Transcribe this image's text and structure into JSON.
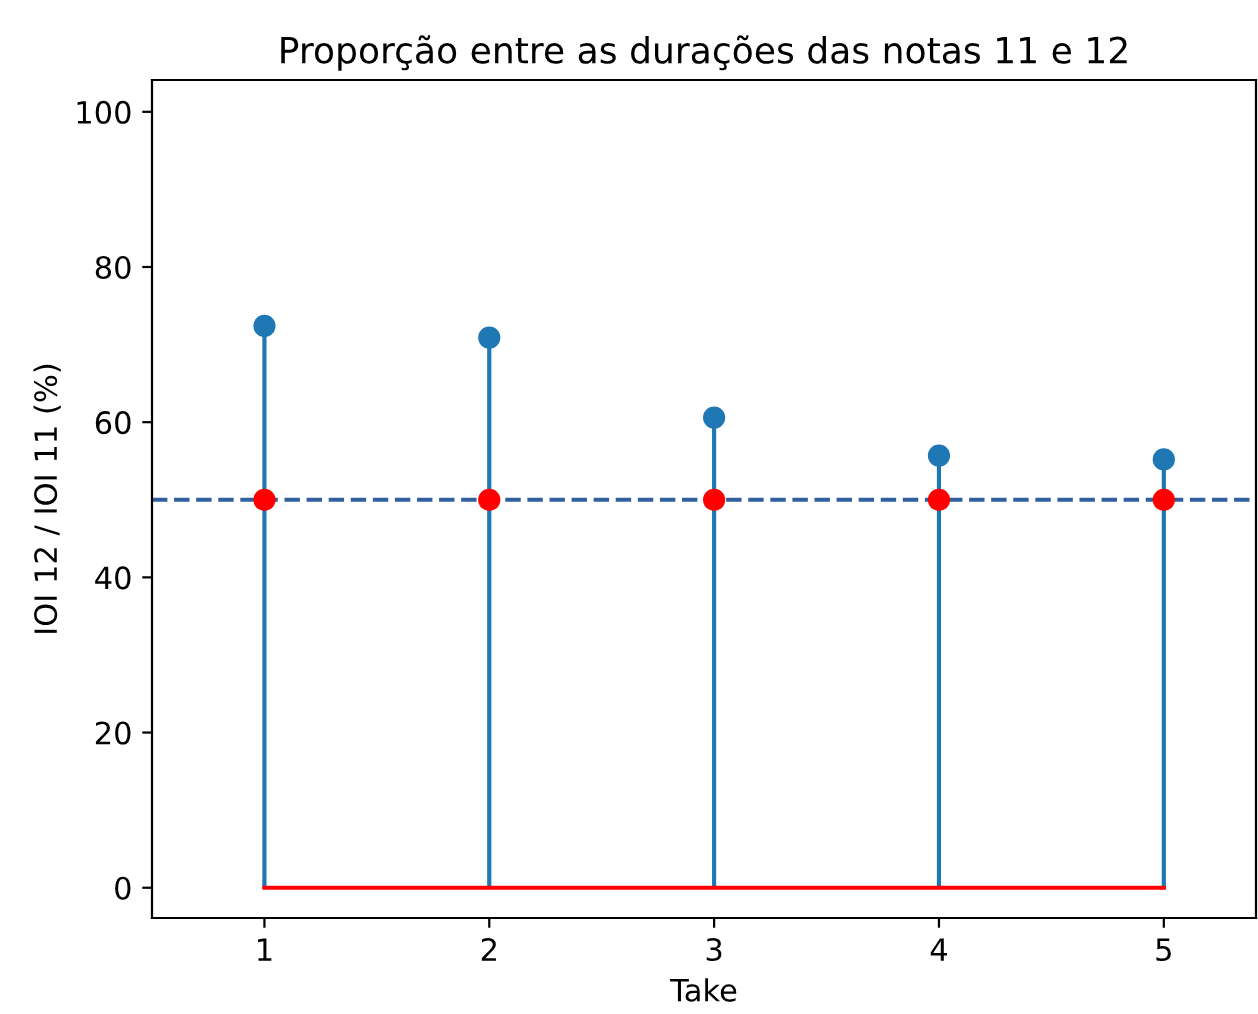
{
  "chart_data": {
    "type": "lollipop",
    "title": "Proporção entre as durações das notas 11 e 12",
    "xlabel": "Take",
    "ylabel": "IOI 12 / IOI 11 (%)",
    "x": [
      1,
      2,
      3,
      4,
      5
    ],
    "series": [
      {
        "color": "#1f77b4",
        "values": [
          72.4,
          70.9,
          60.6,
          55.7,
          55.2
        ]
      },
      {
        "type": "line",
        "color": "#ff0000",
        "x": [
          1,
          5
        ],
        "values": [
          0,
          0
        ],
        "marker": "none"
      },
      {
        "type": "scatter",
        "color": "#ff0000",
        "values": [
          50,
          50,
          50,
          50,
          50
        ]
      }
    ],
    "xlim": [
      0.5,
      5.41
    ],
    "xticks": [
      1,
      2,
      3,
      4,
      5
    ],
    "ylim": [
      -3.9,
      104.1
    ],
    "yticks": [
      0,
      20,
      40,
      60,
      80,
      100
    ],
    "ref_lines": [
      {
        "axis": "y",
        "value": 50,
        "color": "#3060a0",
        "line_style": "dashed"
      }
    ],
    "marker": "circle",
    "grid": false,
    "legend": false
  }
}
